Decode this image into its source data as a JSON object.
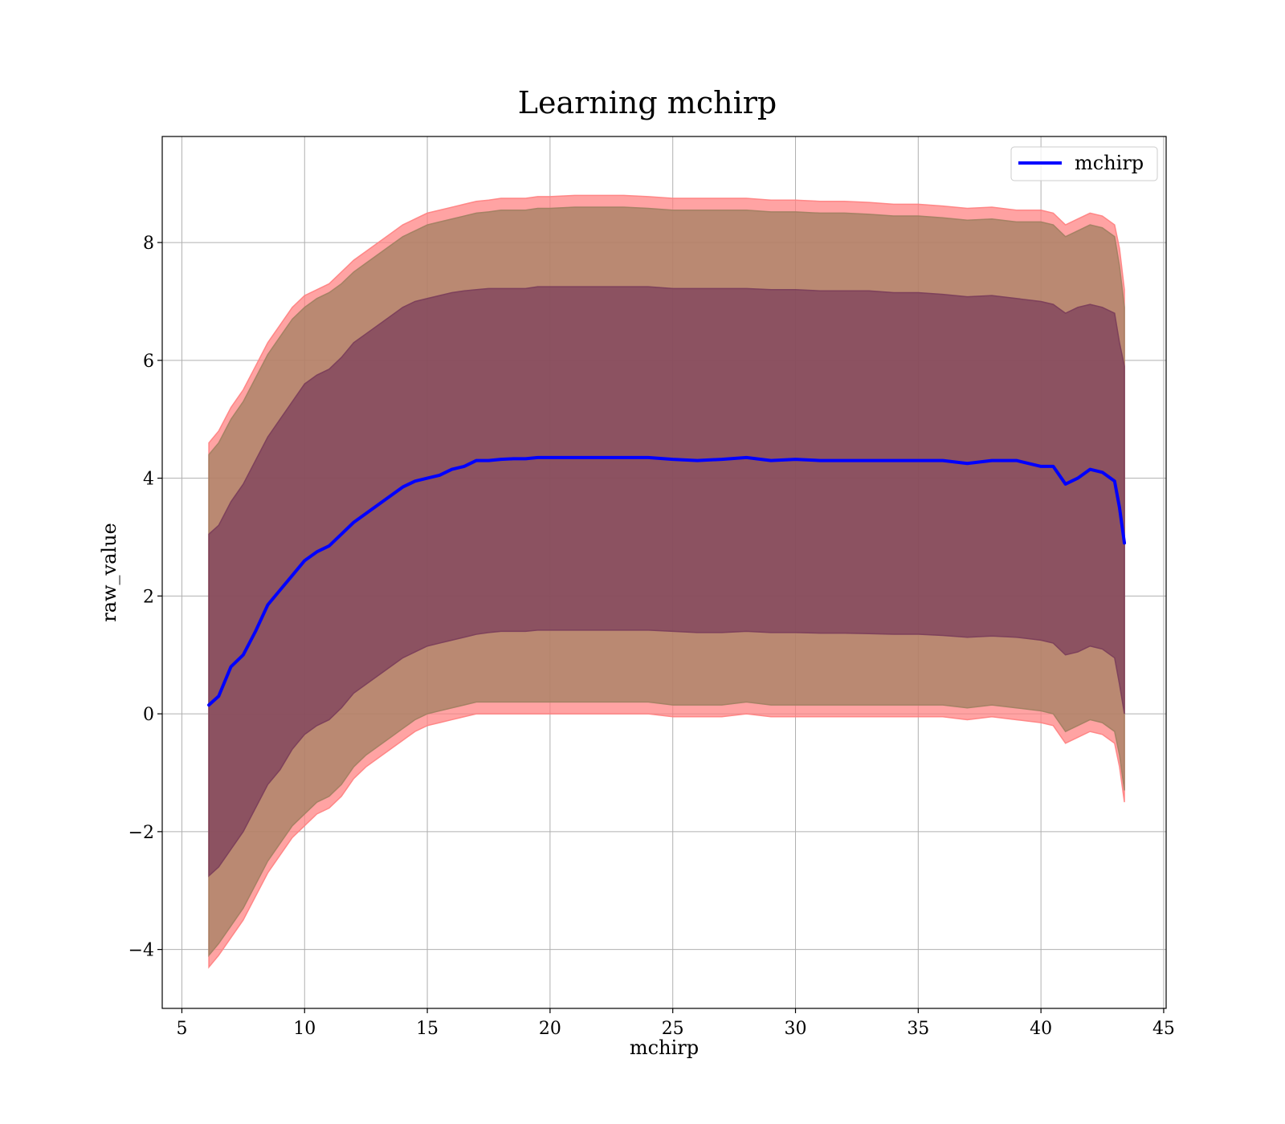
{
  "chart_data": {
    "type": "line",
    "title": "Learning mchirp",
    "xlabel": "mchirp",
    "ylabel": "raw_value",
    "xlim": [
      4.2,
      45.1
    ],
    "ylim": [
      -5.0,
      9.8
    ],
    "xticks": [
      5,
      10,
      15,
      20,
      25,
      30,
      35,
      40,
      45
    ],
    "yticks": [
      -4,
      -2,
      0,
      2,
      4,
      6,
      8
    ],
    "ytick_labels": [
      "−4",
      "−2",
      "0",
      "2",
      "4",
      "6",
      "8"
    ],
    "grid": true,
    "legend": {
      "position": "top-right",
      "entries": [
        "mchirp"
      ]
    },
    "series": [
      {
        "name": "mchirp",
        "color": "#0000ff",
        "x": [
          6.1,
          6.5,
          7,
          7.5,
          8,
          8.5,
          9,
          9.5,
          10,
          10.5,
          11,
          11.5,
          12,
          12.5,
          13,
          13.5,
          14,
          14.5,
          15,
          15.5,
          16,
          16.5,
          17,
          17.5,
          18,
          18.5,
          19,
          19.5,
          20,
          21,
          22,
          23,
          24,
          25,
          26,
          27,
          28,
          29,
          30,
          31,
          32,
          33,
          34,
          35,
          36,
          37,
          38,
          39,
          40,
          40.5,
          41,
          41.5,
          42,
          42.5,
          43,
          43.2,
          43.4
        ],
        "y": [
          0.15,
          0.3,
          0.8,
          1.0,
          1.4,
          1.85,
          2.1,
          2.35,
          2.6,
          2.75,
          2.85,
          3.05,
          3.25,
          3.4,
          3.55,
          3.7,
          3.85,
          3.95,
          4.0,
          4.05,
          4.15,
          4.2,
          4.3,
          4.3,
          4.32,
          4.33,
          4.33,
          4.35,
          4.35,
          4.35,
          4.35,
          4.35,
          4.35,
          4.32,
          4.3,
          4.32,
          4.35,
          4.3,
          4.32,
          4.3,
          4.3,
          4.3,
          4.3,
          4.3,
          4.3,
          4.25,
          4.3,
          4.3,
          4.2,
          4.2,
          3.9,
          4.0,
          4.15,
          4.1,
          3.95,
          3.5,
          2.9
        ]
      }
    ],
    "bands": [
      {
        "name": "outer",
        "color": "#ff8080",
        "x": [
          6.1,
          6.5,
          7,
          7.5,
          8,
          8.5,
          9,
          9.5,
          10,
          10.5,
          11,
          11.5,
          12,
          12.5,
          13,
          13.5,
          14,
          14.5,
          15,
          15.5,
          16,
          16.5,
          17,
          17.5,
          18,
          18.5,
          19,
          19.5,
          20,
          21,
          22,
          23,
          24,
          25,
          26,
          27,
          28,
          29,
          30,
          31,
          32,
          33,
          34,
          35,
          36,
          37,
          38,
          39,
          40,
          40.5,
          41,
          41.5,
          42,
          42.5,
          43,
          43.2,
          43.4
        ],
        "upper": [
          4.6,
          4.8,
          5.2,
          5.5,
          5.9,
          6.3,
          6.6,
          6.9,
          7.1,
          7.2,
          7.3,
          7.5,
          7.7,
          7.85,
          8.0,
          8.15,
          8.3,
          8.4,
          8.5,
          8.55,
          8.6,
          8.65,
          8.7,
          8.72,
          8.75,
          8.75,
          8.75,
          8.78,
          8.78,
          8.8,
          8.8,
          8.8,
          8.78,
          8.75,
          8.75,
          8.75,
          8.75,
          8.72,
          8.72,
          8.7,
          8.7,
          8.68,
          8.65,
          8.65,
          8.62,
          8.58,
          8.6,
          8.55,
          8.55,
          8.5,
          8.3,
          8.4,
          8.5,
          8.45,
          8.3,
          7.9,
          7.2
        ],
        "lower": [
          -4.3,
          -4.1,
          -3.8,
          -3.5,
          -3.1,
          -2.7,
          -2.4,
          -2.1,
          -1.9,
          -1.7,
          -1.6,
          -1.4,
          -1.1,
          -0.9,
          -0.75,
          -0.6,
          -0.45,
          -0.3,
          -0.2,
          -0.15,
          -0.1,
          -0.05,
          0.0,
          0.0,
          0.0,
          0.0,
          0.0,
          0.0,
          0.0,
          0.0,
          0.0,
          0.0,
          0.0,
          -0.05,
          -0.05,
          -0.05,
          0.0,
          -0.05,
          -0.05,
          -0.05,
          -0.05,
          -0.05,
          -0.05,
          -0.05,
          -0.05,
          -0.1,
          -0.05,
          -0.1,
          -0.15,
          -0.2,
          -0.5,
          -0.4,
          -0.3,
          -0.35,
          -0.5,
          -0.9,
          -1.5
        ]
      },
      {
        "name": "middle",
        "color": "#a08060",
        "x": [
          6.1,
          6.5,
          7,
          7.5,
          8,
          8.5,
          9,
          9.5,
          10,
          10.5,
          11,
          11.5,
          12,
          12.5,
          13,
          13.5,
          14,
          14.5,
          15,
          15.5,
          16,
          16.5,
          17,
          17.5,
          18,
          18.5,
          19,
          19.5,
          20,
          21,
          22,
          23,
          24,
          25,
          26,
          27,
          28,
          29,
          30,
          31,
          32,
          33,
          34,
          35,
          36,
          37,
          38,
          39,
          40,
          40.5,
          41,
          41.5,
          42,
          42.5,
          43,
          43.2,
          43.4
        ],
        "upper": [
          4.4,
          4.6,
          5.0,
          5.3,
          5.7,
          6.1,
          6.4,
          6.7,
          6.9,
          7.05,
          7.15,
          7.3,
          7.5,
          7.65,
          7.8,
          7.95,
          8.1,
          8.2,
          8.3,
          8.35,
          8.4,
          8.45,
          8.5,
          8.52,
          8.55,
          8.55,
          8.55,
          8.58,
          8.58,
          8.6,
          8.6,
          8.6,
          8.58,
          8.55,
          8.55,
          8.55,
          8.55,
          8.52,
          8.52,
          8.5,
          8.5,
          8.48,
          8.45,
          8.45,
          8.42,
          8.38,
          8.4,
          8.35,
          8.35,
          8.3,
          8.1,
          8.2,
          8.3,
          8.25,
          8.1,
          7.6,
          6.9
        ],
        "lower": [
          -4.1,
          -3.9,
          -3.6,
          -3.3,
          -2.9,
          -2.5,
          -2.2,
          -1.9,
          -1.7,
          -1.5,
          -1.4,
          -1.2,
          -0.9,
          -0.7,
          -0.55,
          -0.4,
          -0.25,
          -0.1,
          0.0,
          0.05,
          0.1,
          0.15,
          0.2,
          0.2,
          0.2,
          0.2,
          0.2,
          0.2,
          0.2,
          0.2,
          0.2,
          0.2,
          0.2,
          0.15,
          0.15,
          0.15,
          0.2,
          0.15,
          0.15,
          0.15,
          0.15,
          0.15,
          0.15,
          0.15,
          0.15,
          0.1,
          0.15,
          0.1,
          0.05,
          0.0,
          -0.3,
          -0.2,
          -0.1,
          -0.15,
          -0.3,
          -0.7,
          -1.3
        ]
      },
      {
        "name": "inner",
        "color": "#7a3d5a",
        "x": [
          6.1,
          6.5,
          7,
          7.5,
          8,
          8.5,
          9,
          9.5,
          10,
          10.5,
          11,
          11.5,
          12,
          12.5,
          13,
          13.5,
          14,
          14.5,
          15,
          15.5,
          16,
          16.5,
          17,
          17.5,
          18,
          18.5,
          19,
          19.5,
          20,
          21,
          22,
          23,
          24,
          25,
          26,
          27,
          28,
          29,
          30,
          31,
          32,
          33,
          34,
          35,
          36,
          37,
          38,
          39,
          40,
          40.5,
          41,
          41.5,
          42,
          42.5,
          43,
          43.2,
          43.4
        ],
        "upper": [
          3.05,
          3.2,
          3.6,
          3.9,
          4.3,
          4.7,
          5.0,
          5.3,
          5.6,
          5.75,
          5.85,
          6.05,
          6.3,
          6.45,
          6.6,
          6.75,
          6.9,
          7.0,
          7.05,
          7.1,
          7.15,
          7.18,
          7.2,
          7.22,
          7.22,
          7.22,
          7.22,
          7.25,
          7.25,
          7.25,
          7.25,
          7.25,
          7.25,
          7.22,
          7.22,
          7.22,
          7.22,
          7.2,
          7.2,
          7.18,
          7.18,
          7.18,
          7.15,
          7.15,
          7.12,
          7.08,
          7.1,
          7.05,
          7.0,
          6.95,
          6.8,
          6.9,
          6.95,
          6.9,
          6.8,
          6.3,
          5.9
        ],
        "lower": [
          -2.75,
          -2.6,
          -2.3,
          -2.0,
          -1.6,
          -1.2,
          -0.95,
          -0.6,
          -0.35,
          -0.2,
          -0.1,
          0.1,
          0.35,
          0.5,
          0.65,
          0.8,
          0.95,
          1.05,
          1.15,
          1.2,
          1.25,
          1.3,
          1.35,
          1.38,
          1.4,
          1.4,
          1.4,
          1.42,
          1.42,
          1.42,
          1.42,
          1.42,
          1.42,
          1.4,
          1.38,
          1.38,
          1.4,
          1.38,
          1.38,
          1.37,
          1.37,
          1.36,
          1.35,
          1.35,
          1.33,
          1.3,
          1.32,
          1.3,
          1.25,
          1.2,
          1.0,
          1.05,
          1.15,
          1.1,
          0.95,
          0.5,
          0.0
        ]
      }
    ]
  }
}
